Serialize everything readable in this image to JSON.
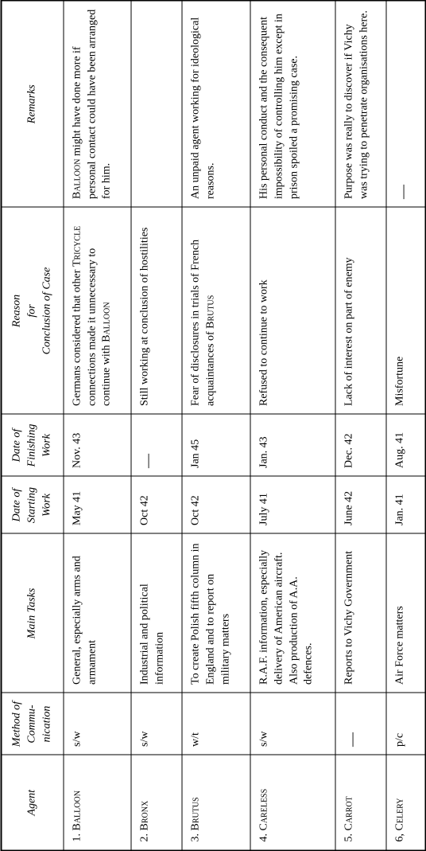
{
  "headers": {
    "agent": "Agent",
    "method": "Method of Commu-nication",
    "tasks": "Main Tasks",
    "start": "Date of Starting Work",
    "finish": "Date of Finishing Work",
    "reason": "Reason for Conclusion of Case",
    "remarks": "Remarks"
  },
  "rows": {
    "0": {
      "num": "1.",
      "agent": "Balloon",
      "method": "s/w",
      "tasks": "General, especially arms and armament",
      "start": "May 41",
      "finish": "Nov. 43",
      "reason_pre": "Germans considered that other ",
      "reason_sc1": "Tricycle",
      "reason_mid": " connections made it unnecessary to continue with ",
      "reason_sc2": "Balloon",
      "remarks_sc": "Balloon",
      "remarks_post": " might have done more if personal contact could have been arranged for him."
    },
    "1": {
      "num": "2.",
      "agent": "Bronx",
      "method": "s/w",
      "tasks": "Industrial and political information",
      "start": "Oct 42",
      "finish": "—",
      "reason": "Still working at conclusion of hostilities",
      "remarks": ""
    },
    "2": {
      "num": "3.",
      "agent": "Brutus",
      "method": "w/t",
      "tasks": "To create Polish fifth column in England and to report on military matters",
      "start": "Oct 42",
      "finish": "Jan 45",
      "reason_pre": "Fear of disclosures in trials of French acquaintances of ",
      "reason_sc1": "Brutus",
      "remarks": "An unpaid agent working for ideological reasons."
    },
    "3": {
      "num": "4.",
      "agent": "Careless",
      "method": "s/w",
      "tasks": "R.A.F. information, especially delivery of American aircraft. Also production of A.A. defences.",
      "start": "July 41",
      "finish": "Jan. 43",
      "reason": "Refused to continue to work",
      "remarks": "His personal conduct and the consequent impossibility of controlling him except in prison spoiled a promising case."
    },
    "4": {
      "num": "5.",
      "agent": "Carrot",
      "method": "—",
      "tasks": "Reports to Vichy Government",
      "start": "June 42",
      "finish": "Dec. 42",
      "reason": "Lack of interest on part of enemy",
      "remarks": "Purpose was really to discover if Vichy was trying to penetrate organisations here."
    },
    "5": {
      "num": "6,",
      "agent": "Celery",
      "method": "p/c",
      "tasks": "Air Force matters",
      "start": "Jan. 41",
      "finish": "Aug. 41",
      "reason": "Misfortune",
      "remarks": "—"
    }
  }
}
